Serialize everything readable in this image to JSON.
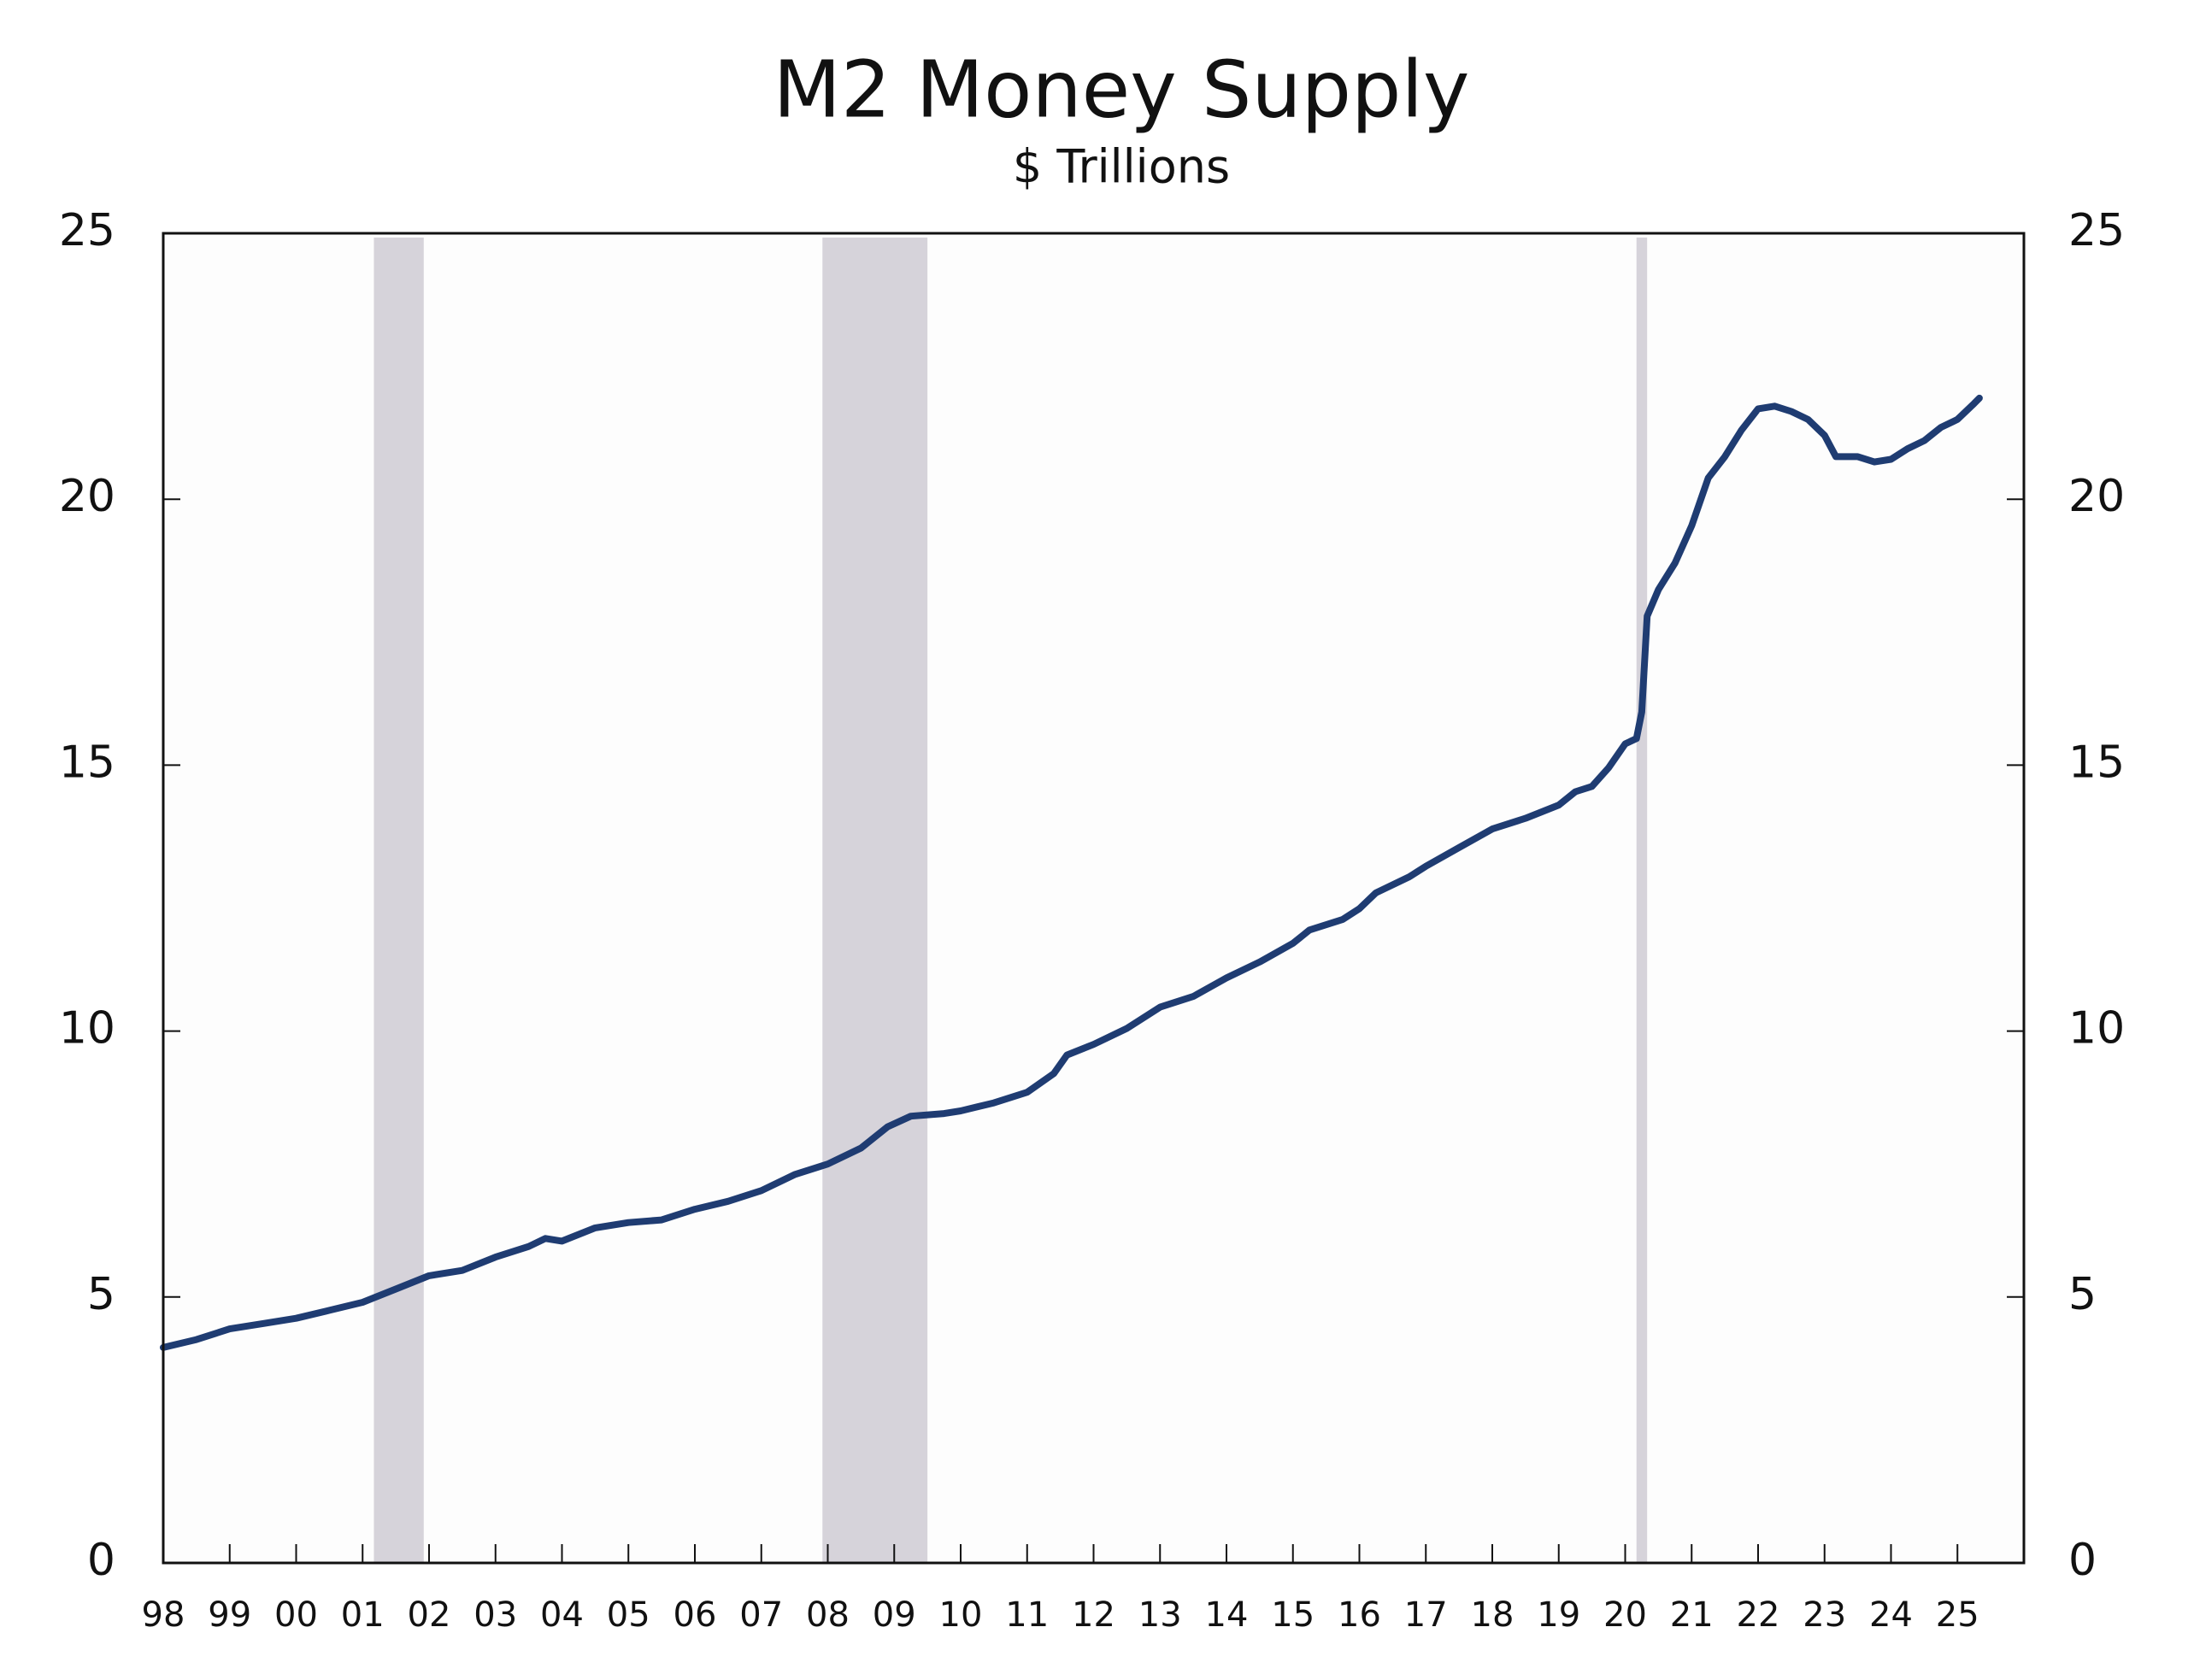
{
  "chart_data": {
    "type": "line",
    "title": "M2 Money Supply",
    "subtitle": "$ Trillions",
    "x": [
      1998.0,
      1998.5,
      1999.0,
      1999.5,
      2000.0,
      2000.5,
      2001.0,
      2001.5,
      2002.0,
      2002.5,
      2003.0,
      2003.5,
      2003.75,
      2004.0,
      2004.5,
      2005.0,
      2005.5,
      2006.0,
      2006.5,
      2007.0,
      2007.5,
      2008.0,
      2008.5,
      2008.9,
      2009.25,
      2009.75,
      2010.0,
      2010.5,
      2011.0,
      2011.4,
      2011.6,
      2012.0,
      2012.5,
      2013.0,
      2013.5,
      2014.0,
      2014.5,
      2015.0,
      2015.25,
      2015.75,
      2016.0,
      2016.25,
      2016.75,
      2017.0,
      2017.5,
      2018.0,
      2018.5,
      2019.0,
      2019.25,
      2019.5,
      2019.75,
      2020.0,
      2020.17,
      2020.25,
      2020.33,
      2020.5,
      2020.75,
      2021.0,
      2021.25,
      2021.5,
      2021.75,
      2022.0,
      2022.25,
      2022.5,
      2022.75,
      2023.0,
      2023.17,
      2023.5,
      2023.75,
      2024.0,
      2024.25,
      2024.5,
      2024.75,
      2025.0,
      2025.25,
      2025.33
    ],
    "values": [
      4.05,
      4.2,
      4.4,
      4.5,
      4.6,
      4.75,
      4.9,
      5.15,
      5.4,
      5.5,
      5.75,
      5.95,
      6.1,
      6.05,
      6.3,
      6.4,
      6.45,
      6.65,
      6.8,
      7.0,
      7.3,
      7.5,
      7.8,
      8.2,
      8.4,
      8.45,
      8.5,
      8.65,
      8.85,
      9.2,
      9.55,
      9.75,
      10.05,
      10.45,
      10.65,
      11.0,
      11.3,
      11.65,
      11.9,
      12.1,
      12.3,
      12.6,
      12.9,
      13.1,
      13.45,
      13.8,
      14.0,
      14.25,
      14.5,
      14.6,
      14.95,
      15.4,
      15.5,
      16.0,
      17.8,
      18.3,
      18.8,
      19.5,
      20.4,
      20.8,
      21.3,
      21.7,
      21.75,
      21.65,
      21.5,
      21.2,
      20.8,
      20.8,
      20.7,
      20.75,
      20.95,
      21.1,
      21.35,
      21.5,
      21.8,
      21.9
    ],
    "color": "#1f3c72",
    "recessions": [
      {
        "start": 2001.17,
        "end": 2001.92
      },
      {
        "start": 2007.92,
        "end": 2009.5
      },
      {
        "start": 2020.17,
        "end": 2020.33
      }
    ],
    "recession_color": "#d6d3da",
    "xlim": [
      1998,
      2026
    ],
    "xticks": [
      {
        "value": 1998,
        "label": "98"
      },
      {
        "value": 1999,
        "label": "99"
      },
      {
        "value": 2000,
        "label": "00"
      },
      {
        "value": 2001,
        "label": "01"
      },
      {
        "value": 2002,
        "label": "02"
      },
      {
        "value": 2003,
        "label": "03"
      },
      {
        "value": 2004,
        "label": "04"
      },
      {
        "value": 2005,
        "label": "05"
      },
      {
        "value": 2006,
        "label": "06"
      },
      {
        "value": 2007,
        "label": "07"
      },
      {
        "value": 2008,
        "label": "08"
      },
      {
        "value": 2009,
        "label": "09"
      },
      {
        "value": 2010,
        "label": "10"
      },
      {
        "value": 2011,
        "label": "11"
      },
      {
        "value": 2012,
        "label": "12"
      },
      {
        "value": 2013,
        "label": "13"
      },
      {
        "value": 2014,
        "label": "14"
      },
      {
        "value": 2015,
        "label": "15"
      },
      {
        "value": 2016,
        "label": "16"
      },
      {
        "value": 2017,
        "label": "17"
      },
      {
        "value": 2018,
        "label": "18"
      },
      {
        "value": 2019,
        "label": "19"
      },
      {
        "value": 2020,
        "label": "20"
      },
      {
        "value": 2021,
        "label": "21"
      },
      {
        "value": 2022,
        "label": "22"
      },
      {
        "value": 2023,
        "label": "23"
      },
      {
        "value": 2024,
        "label": "24"
      },
      {
        "value": 2025,
        "label": "25"
      }
    ],
    "ylim": [
      0,
      25
    ],
    "yticks": [
      0,
      5,
      10,
      15,
      20,
      25
    ],
    "y2lim": [
      0,
      25
    ],
    "y2ticks": [
      0,
      5,
      10,
      15,
      20,
      25
    ]
  }
}
